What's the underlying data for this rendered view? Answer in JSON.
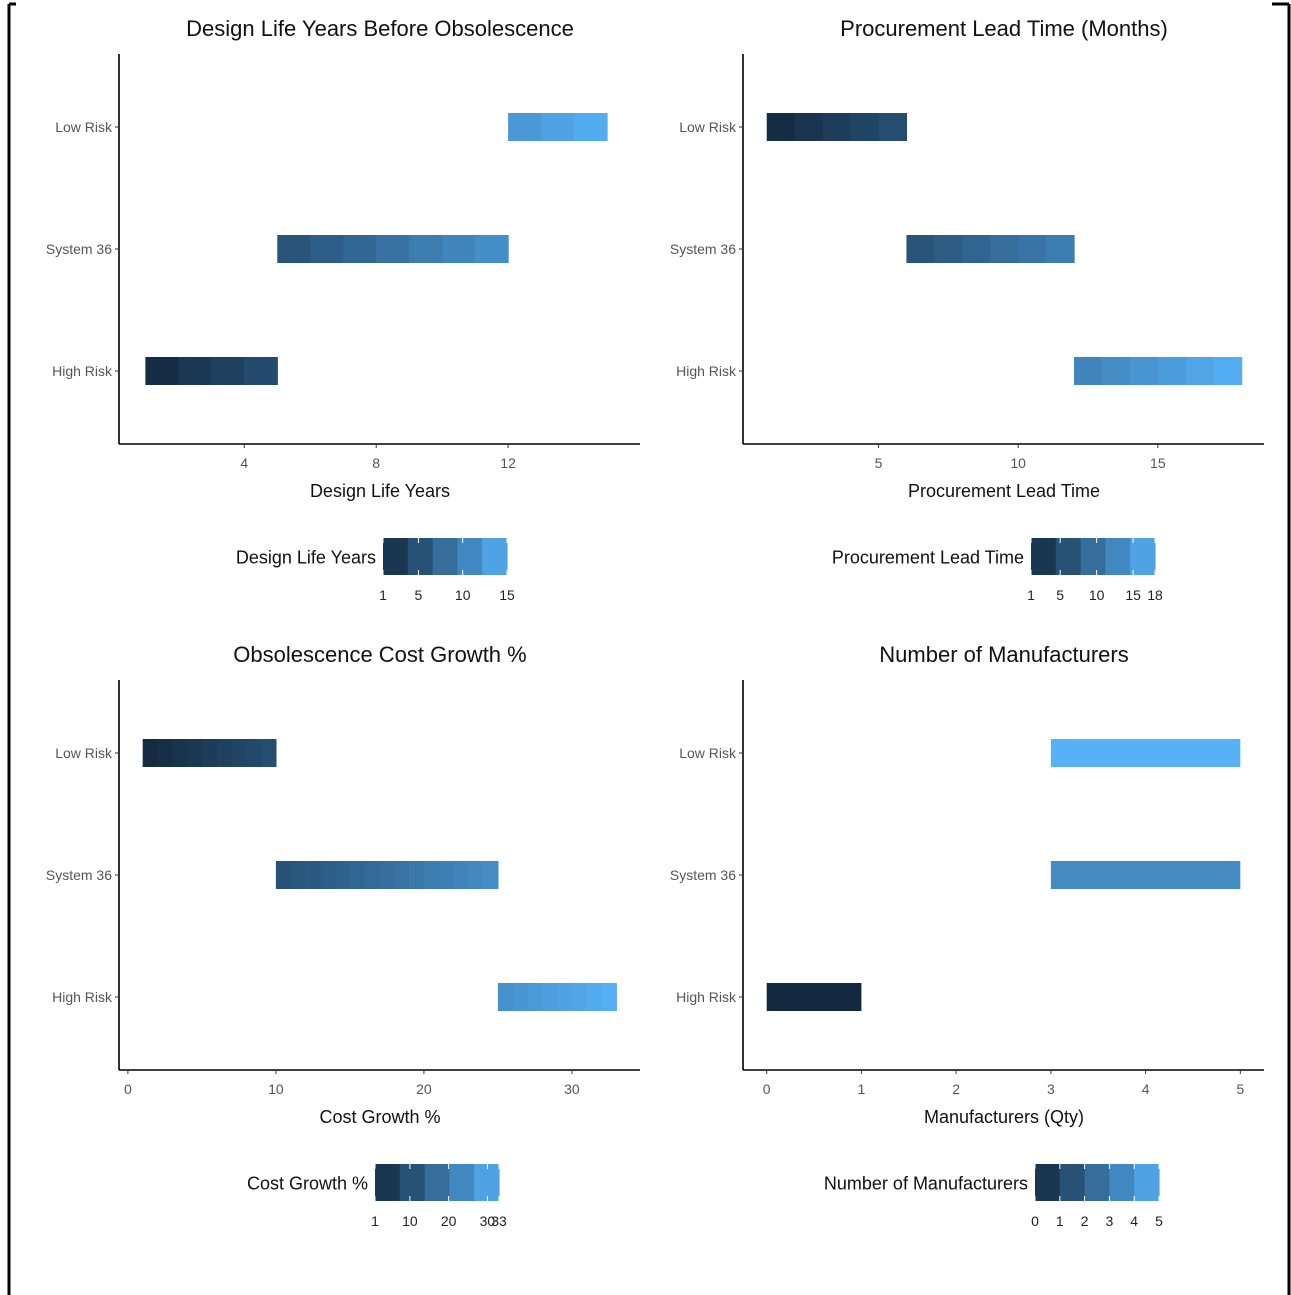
{
  "chart_data": [
    {
      "type": "bar",
      "title": "Design Life Years Before Obsolescence",
      "xlabel": "Design Life Years",
      "ylabel": "",
      "categories": [
        "Low Risk",
        "System 36",
        "High Risk"
      ],
      "xlim": [
        0.2,
        16
      ],
      "x_ticks": [
        "4",
        "8",
        "12"
      ],
      "x_tick_values": [
        4,
        8,
        12
      ],
      "series": [
        {
          "category": "Low Risk",
          "range": [
            12,
            15
          ]
        },
        {
          "category": "System 36",
          "range": [
            5,
            12
          ]
        },
        {
          "category": "High Risk",
          "range": [
            1,
            5
          ]
        }
      ],
      "legend": {
        "title": "Design Life Years",
        "placement": "bottom",
        "breaks": [
          "1",
          "5",
          "10",
          "15"
        ],
        "break_values": [
          1,
          5,
          10,
          15
        ]
      },
      "colors": {
        "low": "#13293f",
        "high": "#56b1f7"
      }
    },
    {
      "type": "bar",
      "title": "Procurement Lead Time (Months)",
      "xlabel": "Procurement Lead Time",
      "ylabel": "",
      "categories": [
        "Low Risk",
        "System 36",
        "High Risk"
      ],
      "xlim": [
        0.15,
        18.8
      ],
      "x_ticks": [
        "5",
        "10",
        "15"
      ],
      "x_tick_values": [
        5,
        10,
        15
      ],
      "series": [
        {
          "category": "Low Risk",
          "range": [
            1,
            6
          ]
        },
        {
          "category": "System 36",
          "range": [
            6,
            12
          ]
        },
        {
          "category": "High Risk",
          "range": [
            12,
            18
          ]
        }
      ],
      "legend": {
        "title": "Procurement Lead Time",
        "placement": "bottom",
        "breaks": [
          "1",
          "5",
          "10",
          "15",
          "18"
        ],
        "break_values": [
          1,
          5,
          10,
          15,
          18
        ]
      },
      "colors": {
        "low": "#13293f",
        "high": "#56b1f7"
      }
    },
    {
      "type": "bar",
      "title": "Obsolescence Cost Growth %",
      "xlabel": "Cost Growth %",
      "ylabel": "",
      "categories": [
        "Low Risk",
        "System 36",
        "High Risk"
      ],
      "xlim": [
        -0.6,
        34.6
      ],
      "x_ticks": [
        "0",
        "10",
        "20",
        "30"
      ],
      "x_tick_values": [
        0,
        10,
        20,
        30
      ],
      "series": [
        {
          "category": "Low Risk",
          "range": [
            1,
            10
          ]
        },
        {
          "category": "System 36",
          "range": [
            10,
            25
          ]
        },
        {
          "category": "High Risk",
          "range": [
            25,
            33
          ]
        }
      ],
      "legend": {
        "title": "Cost Growth %",
        "placement": "bottom",
        "breaks": [
          "1",
          "10",
          "20",
          "30",
          "33"
        ],
        "break_values": [
          1,
          10,
          20,
          30,
          33
        ]
      },
      "colors": {
        "low": "#13293f",
        "high": "#56b1f7"
      }
    },
    {
      "type": "bar",
      "title": "Number of Manufacturers",
      "xlabel": "Manufacturers (Qty)",
      "ylabel": "",
      "categories": [
        "Low Risk",
        "System 36",
        "High Risk"
      ],
      "xlim": [
        -0.25,
        5.25
      ],
      "x_ticks": [
        "0",
        "1",
        "2",
        "3",
        "4",
        "5"
      ],
      "x_tick_values": [
        0,
        1,
        2,
        3,
        4,
        5
      ],
      "series": [
        {
          "category": "Low Risk",
          "range": [
            3,
            5
          ],
          "level": 5
        },
        {
          "category": "System 36",
          "range": [
            3,
            5
          ],
          "level": 3.6
        },
        {
          "category": "High Risk",
          "range": [
            0,
            1
          ],
          "level": 0
        }
      ],
      "legend": {
        "title": "Number of Manufacturers",
        "placement": "bottom",
        "breaks": [
          "0",
          "1",
          "2",
          "3",
          "4",
          "5"
        ],
        "break_values": [
          0,
          1,
          2,
          3,
          4,
          5
        ]
      },
      "colors": {
        "low": "#13293f",
        "high": "#56b1f7"
      }
    }
  ]
}
